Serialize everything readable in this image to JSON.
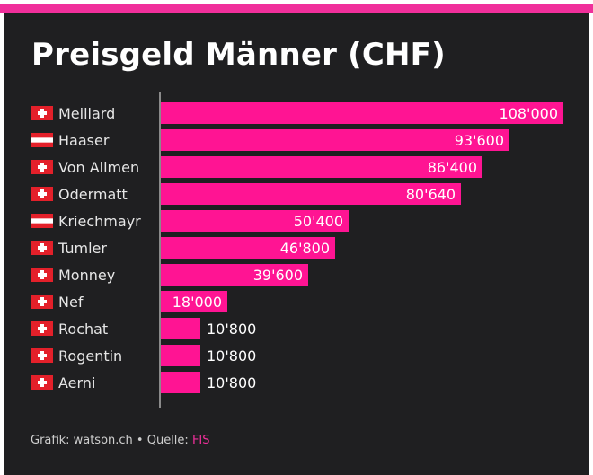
{
  "title": "Preisgeld Männer (CHF)",
  "footer": {
    "prefix": "Grafik: watson.ch • Quelle: ",
    "source": "FIS"
  },
  "colors": {
    "bar": "#ff1493",
    "background": "#1f1f21",
    "accent": "#f02f9b",
    "swiss_red": "#e3202a",
    "austria_red": "#e3202a"
  },
  "chart_data": {
    "type": "bar",
    "orientation": "horizontal",
    "title": "Preisgeld Männer (CHF)",
    "xlim": [
      0,
      108000
    ],
    "categories": [
      "Meillard",
      "Haaser",
      "Von Allmen",
      "Odermatt",
      "Kriechmayr",
      "Tumler",
      "Monney",
      "Nef",
      "Rochat",
      "Rogentin",
      "Aerni"
    ],
    "flags": [
      "switzerland-flag-icon",
      "austria-flag-icon",
      "switzerland-flag-icon",
      "switzerland-flag-icon",
      "austria-flag-icon",
      "switzerland-flag-icon",
      "switzerland-flag-icon",
      "switzerland-flag-icon",
      "switzerland-flag-icon",
      "switzerland-flag-icon",
      "switzerland-flag-icon"
    ],
    "values": [
      108000,
      93600,
      86400,
      80640,
      50400,
      46800,
      39600,
      18000,
      10800,
      10800,
      10800
    ],
    "value_labels": [
      "108'000",
      "93'600",
      "86'400",
      "80'640",
      "50'400",
      "46'800",
      "39'600",
      "18'000",
      "10'800",
      "10'800",
      "10'800"
    ]
  }
}
